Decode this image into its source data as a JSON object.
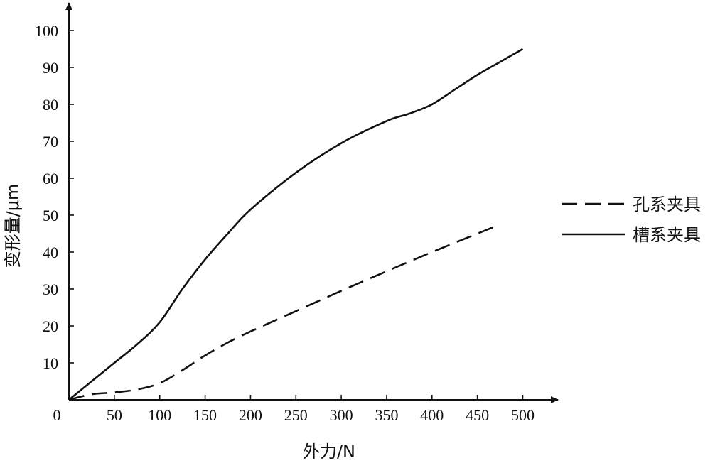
{
  "chart_data": {
    "type": "line",
    "xlabel": "外力/N",
    "ylabel": "变形量/μm",
    "xlim": [
      0,
      530
    ],
    "ylim": [
      0,
      105
    ],
    "x_ticks": [
      50,
      100,
      150,
      200,
      250,
      300,
      350,
      400,
      450,
      500
    ],
    "y_ticks": [
      10,
      20,
      30,
      40,
      50,
      60,
      70,
      80,
      90,
      100
    ],
    "origin_label": "0",
    "grid": false,
    "legend_position": "right",
    "series": [
      {
        "name": "孔系夹具",
        "style": "dashed",
        "x": [
          0,
          25,
          50,
          75,
          100,
          125,
          150,
          175,
          200,
          250,
          300,
          350,
          400,
          450,
          475
        ],
        "y": [
          0,
          1.5,
          2,
          2.8,
          4.5,
          8,
          12,
          15.5,
          18.5,
          24,
          29.5,
          34.8,
          40,
          45,
          47.5
        ]
      },
      {
        "name": "槽系夹具",
        "style": "solid",
        "x": [
          0,
          25,
          50,
          75,
          100,
          125,
          150,
          175,
          200,
          250,
          300,
          350,
          375,
          400,
          425,
          450,
          475,
          500
        ],
        "y": [
          0,
          5,
          10,
          15,
          21,
          30,
          38,
          45,
          51.5,
          61.5,
          69.5,
          75.5,
          77.5,
          80,
          84,
          88,
          91.5,
          95
        ]
      }
    ]
  }
}
